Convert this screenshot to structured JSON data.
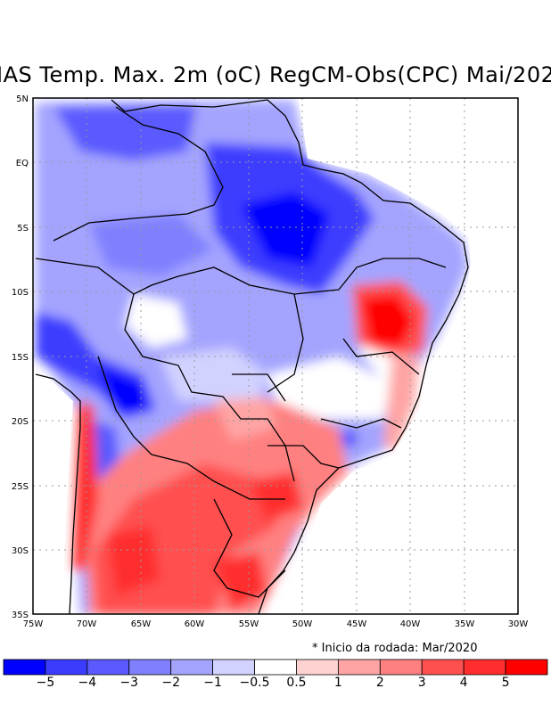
{
  "title": "IAS Temp. Max. 2m (oC) RegCM-Obs(CPC) Mai/202",
  "note": "* Inicio da rodada: Mar/2020",
  "map": {
    "lon_range": [
      -75,
      -30
    ],
    "lat_range": [
      -35,
      5
    ],
    "lat_ticks": [
      "5N",
      "EQ",
      "5S",
      "10S",
      "15S",
      "20S",
      "25S",
      "30S",
      "35S"
    ],
    "lon_ticks": [
      "75W",
      "70W",
      "65W",
      "60W",
      "55W",
      "50W",
      "45W",
      "40W",
      "35W",
      "30W"
    ]
  },
  "colorbar": {
    "colors": [
      "#0000ff",
      "#3c3cff",
      "#5a5aff",
      "#8080ff",
      "#a4a4ff",
      "#d2d2ff",
      "#ffffff",
      "#ffd2d2",
      "#ffa4a4",
      "#ff8080",
      "#ff5050",
      "#ff2d2d",
      "#ff0000"
    ],
    "labels": [
      "−5",
      "−4",
      "−3",
      "−2",
      "−1",
      "−0.5",
      "0.5",
      "1",
      "2",
      "3",
      "4",
      "5"
    ]
  }
}
